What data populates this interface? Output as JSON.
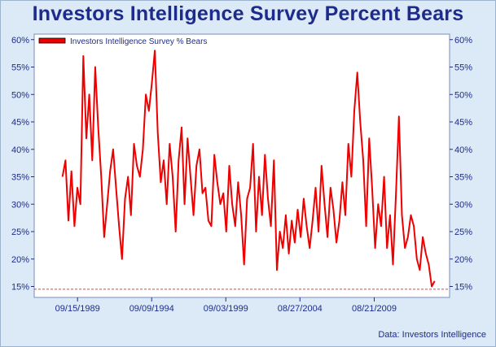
{
  "chart_data": {
    "type": "line",
    "title": "Investors Intelligence Survey Percent Bears",
    "source": "Data: Investors Intelligence",
    "series": [
      {
        "name": "Investors Intelligence Survey % Bears",
        "color": "#ee0000",
        "x": [
          1988.7,
          1988.9,
          1989.1,
          1989.3,
          1989.5,
          1989.7,
          1989.9,
          1990.1,
          1990.3,
          1990.5,
          1990.7,
          1990.9,
          1991.1,
          1991.3,
          1991.5,
          1991.7,
          1991.9,
          1992.1,
          1992.3,
          1992.5,
          1992.7,
          1992.9,
          1993.1,
          1993.3,
          1993.5,
          1993.7,
          1993.9,
          1994.1,
          1994.3,
          1994.5,
          1994.7,
          1994.9,
          1995.1,
          1995.3,
          1995.5,
          1995.7,
          1995.9,
          1996.1,
          1996.3,
          1996.5,
          1996.7,
          1996.9,
          1997.1,
          1997.3,
          1997.5,
          1997.7,
          1997.9,
          1998.1,
          1998.3,
          1998.5,
          1998.7,
          1998.9,
          1999.1,
          1999.3,
          1999.5,
          1999.7,
          1999.9,
          2000.1,
          2000.3,
          2000.5,
          2000.7,
          2000.9,
          2001.1,
          2001.3,
          2001.5,
          2001.7,
          2001.9,
          2002.1,
          2002.3,
          2002.5,
          2002.7,
          2002.9,
          2003.1,
          2003.3,
          2003.5,
          2003.7,
          2003.9,
          2004.1,
          2004.3,
          2004.5,
          2004.7,
          2004.9,
          2005.1,
          2005.3,
          2005.5,
          2005.7,
          2005.9,
          2006.1,
          2006.3,
          2006.5,
          2006.7,
          2006.9,
          2007.1,
          2007.3,
          2007.5,
          2007.7,
          2007.9,
          2008.1,
          2008.3,
          2008.5,
          2008.7,
          2008.9,
          2009.1,
          2009.3,
          2009.5,
          2009.7,
          2009.9,
          2010.1,
          2010.3,
          2010.5,
          2010.7,
          2010.9,
          2011.1,
          2011.3,
          2011.5,
          2011.7,
          2011.9,
          2012.1,
          2012.3,
          2012.5,
          2012.7,
          2012.9,
          2013.1,
          2013.3,
          2013.5,
          2013.7
        ],
        "values": [
          35,
          38,
          27,
          36,
          26,
          33,
          30,
          57,
          42,
          50,
          38,
          55,
          44,
          35,
          24,
          30,
          36,
          40,
          33,
          26,
          20,
          31,
          35,
          28,
          41,
          37,
          35,
          40,
          50,
          47,
          52,
          58,
          43,
          34,
          38,
          30,
          41,
          35,
          25,
          38,
          44,
          30,
          42,
          35,
          28,
          37,
          40,
          32,
          33,
          27,
          26,
          39,
          34,
          30,
          32,
          25,
          37,
          30,
          26,
          34,
          28,
          19,
          31,
          33,
          41,
          25,
          35,
          28,
          39,
          31,
          26,
          38,
          18,
          25,
          22,
          28,
          21,
          27,
          23,
          29,
          24,
          31,
          26,
          22,
          27,
          33,
          25,
          37,
          30,
          24,
          33,
          29,
          23,
          27,
          34,
          28,
          41,
          35,
          47,
          54,
          45,
          38,
          26,
          42,
          33,
          22,
          30,
          26,
          35,
          22,
          28,
          19,
          32,
          46,
          28,
          22,
          24,
          28,
          26,
          20,
          18,
          24,
          21,
          19,
          15,
          16
        ],
        "min_line": 14.5
      }
    ],
    "x_ticks": [
      {
        "value": 1989.71,
        "label": "09/15/1989"
      },
      {
        "value": 1994.69,
        "label": "09/09/1994"
      },
      {
        "value": 1999.67,
        "label": "09/03/1999"
      },
      {
        "value": 2004.65,
        "label": "08/27/2004"
      },
      {
        "value": 2009.64,
        "label": "08/21/2009"
      }
    ],
    "xlim": [
      1986.8,
      2014.7
    ],
    "ylim": [
      13,
      61
    ],
    "y_ticks": [
      15,
      20,
      25,
      30,
      35,
      40,
      45,
      50,
      55,
      60
    ],
    "y_tick_labels": [
      "15%",
      "20%",
      "25%",
      "30%",
      "35%",
      "40%",
      "45%",
      "50%",
      "55%",
      "60%"
    ],
    "legend": "top-left",
    "grid": false
  }
}
